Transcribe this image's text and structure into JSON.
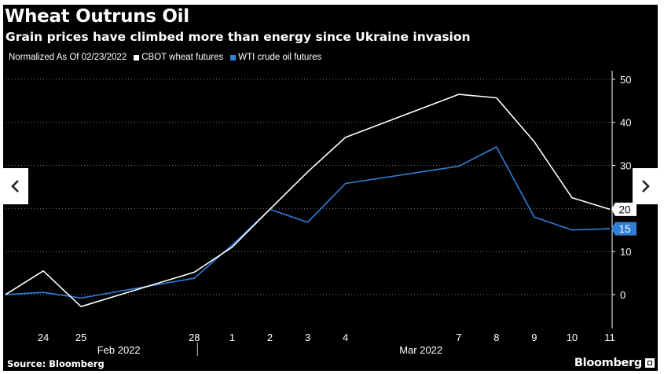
{
  "header": {
    "title": "Wheat Outruns Oil",
    "subtitle": "Grain prices have climbed more than energy since Ukraine invasion"
  },
  "legend": {
    "note": "Normalized As Of 02/23/2022",
    "entries": [
      {
        "label": "CBOT wheat futures",
        "color": "#ffffff"
      },
      {
        "label": "WTI crude oil futures",
        "color": "#2f7fd8"
      }
    ]
  },
  "footer": {
    "source": "Source: Bloomberg",
    "brand": "Bloomberg"
  },
  "navigation": {
    "prev_icon": "chevron-left-icon",
    "next_icon": "chevron-right-icon"
  },
  "chart_data": {
    "type": "line",
    "title": "Wheat Outruns Oil",
    "subtitle": "Grain prices have climbed more than energy since Ukraine invasion",
    "x": [
      "2022-02-23",
      "2022-02-24",
      "2022-02-25",
      "2022-02-28",
      "2022-03-01",
      "2022-03-02",
      "2022-03-03",
      "2022-03-04",
      "2022-03-07",
      "2022-03-08",
      "2022-03-09",
      "2022-03-10",
      "2022-03-11"
    ],
    "x_tick_labels": [
      "24",
      "25",
      "28",
      "1",
      "2",
      "3",
      "4",
      "7",
      "8",
      "9",
      "10",
      "11"
    ],
    "x_tick_dates": [
      "2022-02-24",
      "2022-02-25",
      "2022-02-28",
      "2022-03-01",
      "2022-03-02",
      "2022-03-03",
      "2022-03-04",
      "2022-03-07",
      "2022-03-08",
      "2022-03-09",
      "2022-03-10",
      "2022-03-11"
    ],
    "x_group_labels": [
      {
        "label": "Feb 2022",
        "dates": [
          "2022-02-24",
          "2022-02-28"
        ]
      },
      {
        "label": "Mar 2022",
        "dates": [
          "2022-03-01",
          "2022-03-11"
        ]
      }
    ],
    "series": [
      {
        "name": "CBOT wheat futures",
        "color": "#ffffff",
        "values": [
          0,
          5.5,
          -2.8,
          5.2,
          11,
          19.8,
          28.5,
          36.5,
          46.5,
          45.7,
          35.5,
          22.5,
          19.8
        ],
        "last_label": "20"
      },
      {
        "name": "WTI crude oil futures",
        "color": "#2f7fd8",
        "values": [
          0,
          0.5,
          -0.8,
          3.8,
          11.5,
          19.8,
          16.8,
          25.8,
          29.8,
          34.3,
          18,
          15,
          15.3
        ],
        "last_label": "15"
      }
    ],
    "y_ticks": [
      0,
      10,
      20,
      30,
      40,
      50
    ],
    "ylim": [
      -7.5,
      52
    ],
    "grid": "horizontal dotted",
    "y_axis_side": "right"
  }
}
